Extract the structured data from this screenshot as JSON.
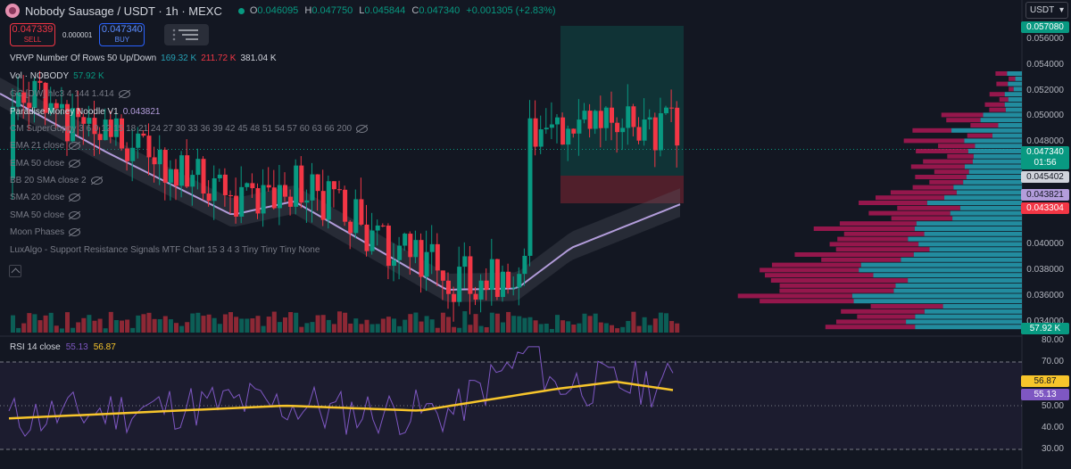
{
  "header": {
    "symbol_title": "Nobody Sausage / USDT · 1h · MEXC",
    "ohlc": [
      {
        "k": "O",
        "v": "0.046095"
      },
      {
        "k": "H",
        "v": "0.047750"
      },
      {
        "k": "L",
        "v": "0.045844"
      },
      {
        "k": "C",
        "v": "0.047340"
      }
    ],
    "change": "+0.001305 (+2.83%)",
    "currency_button": "USDT"
  },
  "trade": {
    "sell_price": "0.047339",
    "sell_label": "SELL",
    "spread": "0.000001",
    "buy_price": "0.047340",
    "buy_label": "BUY"
  },
  "indicators": {
    "vrvp": {
      "label": "VRVP Number Of Rows 50 Up/Down",
      "up": "169.32 K",
      "down": "211.72 K",
      "total": "381.04 K"
    },
    "vol": {
      "label": "Vol · NOBODY",
      "value": "57.92 K"
    },
    "gc": {
      "label": "GC [DW] hlc3 4 144 1.414"
    },
    "noodle": {
      "label": "Paradise Money Noodle V1",
      "value": "0.043821"
    },
    "supergupp": {
      "label": "CM SuperGuppy 3 6 9 12 15 18 21 24 27 30 33 36 39 42 45 48 51 54 57 60 63 66 200"
    },
    "ema21": {
      "label": "EMA 21 close"
    },
    "ema50": {
      "label": "EMA 50 close"
    },
    "bb": {
      "label": "BB 20 SMA close 2"
    },
    "sma20": {
      "label": "SMA 20 close"
    },
    "sma50": {
      "label": "SMA 50 close"
    },
    "moon": {
      "label": "Moon Phases"
    },
    "luxalgo": {
      "label": "LuxAlgo - Support Resistance Signals MTF Chart 15 3 4 3 Tiny Tiny Tiny None"
    }
  },
  "rsi": {
    "label": "RSI 14 close",
    "value": "55.13",
    "ma": "56.87"
  },
  "price_axis": {
    "ticks": [
      "0.056000",
      "0.054000",
      "0.052000",
      "0.050000",
      "0.048000",
      "0.040000",
      "0.038000",
      "0.036000",
      "0.034000"
    ],
    "tags": {
      "top": {
        "text": "0.057080",
        "color": "#089981"
      },
      "last": {
        "text": "0.047340",
        "color": "#089981"
      },
      "countdown": "01:56",
      "level1": {
        "text": "0.045402",
        "color": "#d1d4dc"
      },
      "noodle": {
        "text": "0.043821",
        "color": "#b39ddb"
      },
      "level2": {
        "text": "0.043304",
        "color": "#f23645"
      },
      "volume": {
        "text": "57.92 K",
        "color": "#089981"
      }
    }
  },
  "rsi_axis": {
    "ticks": [
      "80.00",
      "70.00",
      "50.00",
      "40.00",
      "30.00"
    ],
    "tags": {
      "ma": {
        "text": "56.87",
        "color": "#f7c52b"
      },
      "rsi": {
        "text": "55.13",
        "color": "#7e57c2"
      }
    }
  },
  "colors": {
    "up": "#089981",
    "down": "#f23645",
    "noodle": "#b39ddb",
    "rsi": "#7e57c2",
    "rsi_ma": "#f7c52b",
    "vp_up": "#26a1b5",
    "vp_down": "#c2185b"
  }
}
